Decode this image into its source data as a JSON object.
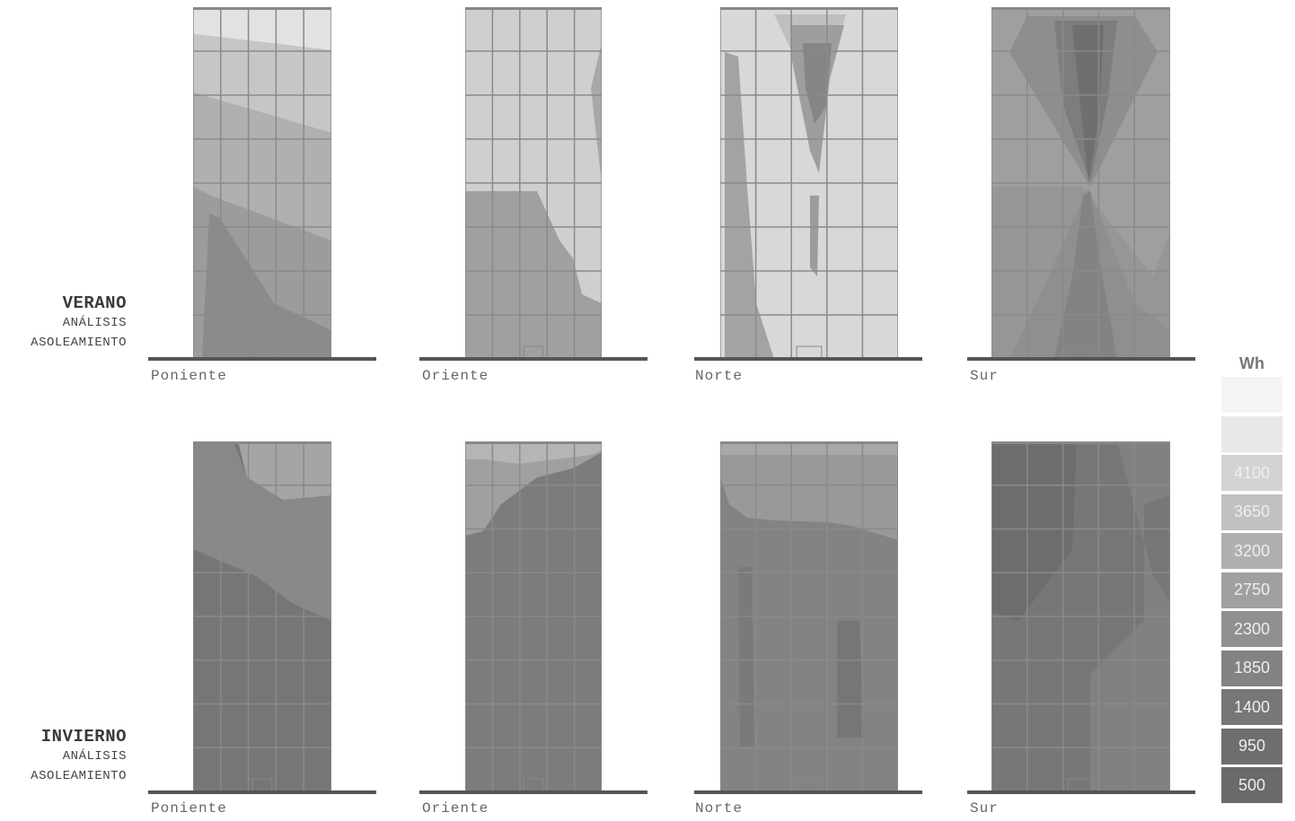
{
  "rows": [
    {
      "title": "VERANO",
      "sub1": "ANÁLISIS",
      "sub2": "ASOLEAMIENTO",
      "panels": [
        {
          "label": "Poniente",
          "base": "#9c9c9c"
        },
        {
          "label": "Oriente",
          "base": "#cfcfcf"
        },
        {
          "label": "Norte",
          "base": "#d8d8d8"
        },
        {
          "label": "Sur",
          "base": "#969696"
        }
      ]
    },
    {
      "title": "INVIERNO",
      "sub1": "ANÁLISIS",
      "sub2": "ASOLEAMIENTO",
      "panels": [
        {
          "label": "Poniente",
          "base": "#767676"
        },
        {
          "label": "Oriente",
          "base": "#7c7c7c"
        },
        {
          "label": "Norte",
          "base": "#838383"
        },
        {
          "label": "Sur",
          "base": "#777777"
        }
      ]
    }
  ],
  "legend": {
    "unit": "Wh",
    "items": [
      {
        "value": "",
        "color": "#f4f4f4"
      },
      {
        "value": "",
        "color": "#e8e8e8"
      },
      {
        "value": "4100",
        "color": "#d3d3d3"
      },
      {
        "value": "3650",
        "color": "#c1c1c1"
      },
      {
        "value": "3200",
        "color": "#b0b0b0"
      },
      {
        "value": "2750",
        "color": "#a0a0a0"
      },
      {
        "value": "2300",
        "color": "#909090"
      },
      {
        "value": "1850",
        "color": "#838383"
      },
      {
        "value": "1400",
        "color": "#777777"
      },
      {
        "value": "950",
        "color": "#6e6e6e"
      },
      {
        "value": "500",
        "color": "#6a6a6a"
      }
    ]
  }
}
